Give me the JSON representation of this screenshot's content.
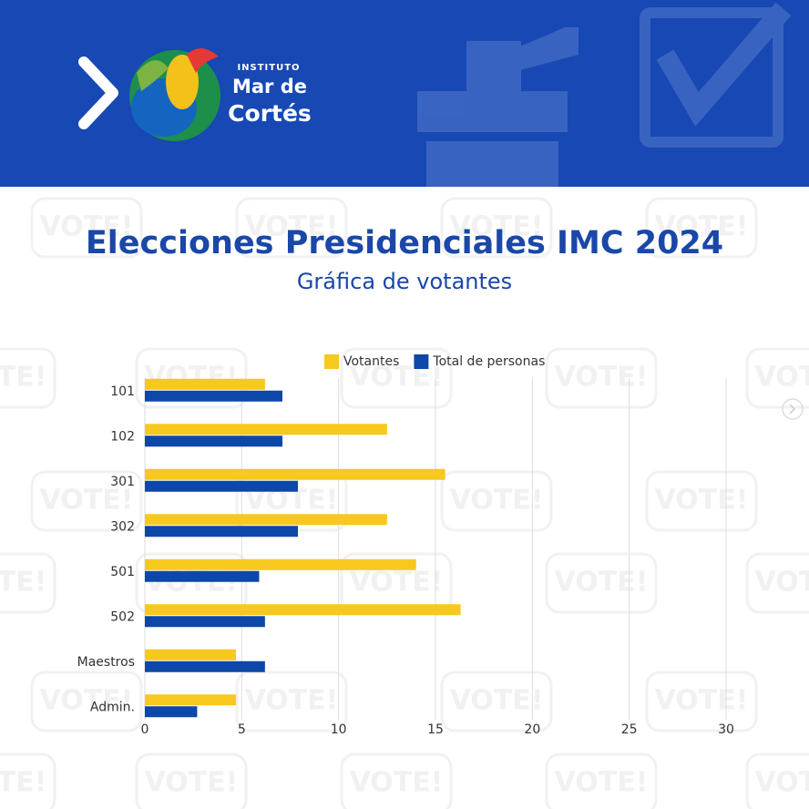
{
  "header": {
    "logo_small": "INSTITUTO",
    "logo_line1": "Mar de",
    "logo_line2": "Cortés"
  },
  "background_text": "VOTE!",
  "chart_data": {
    "type": "hbar",
    "title": "Elecciones Presidenciales IMC 2024",
    "subtitle": "Gráfica de votantes",
    "categories": [
      "101",
      "102",
      "301",
      "302",
      "501",
      "502",
      "Maestros",
      "Admin."
    ],
    "series": [
      {
        "name": "Votantes",
        "color": "#f7c81e",
        "values": [
          6.2,
          12.5,
          15.5,
          12.5,
          14,
          16.3,
          4.7,
          4.7
        ]
      },
      {
        "name": "Total de personas",
        "color": "#0d47a8",
        "values": [
          7.1,
          7.1,
          7.9,
          7.9,
          5.9,
          6.2,
          6.2,
          2.7
        ]
      }
    ],
    "xlim": [
      0,
      30
    ],
    "xticks": [
      0,
      5,
      10,
      15,
      20,
      25,
      30
    ],
    "grid": true,
    "legend": "top"
  }
}
